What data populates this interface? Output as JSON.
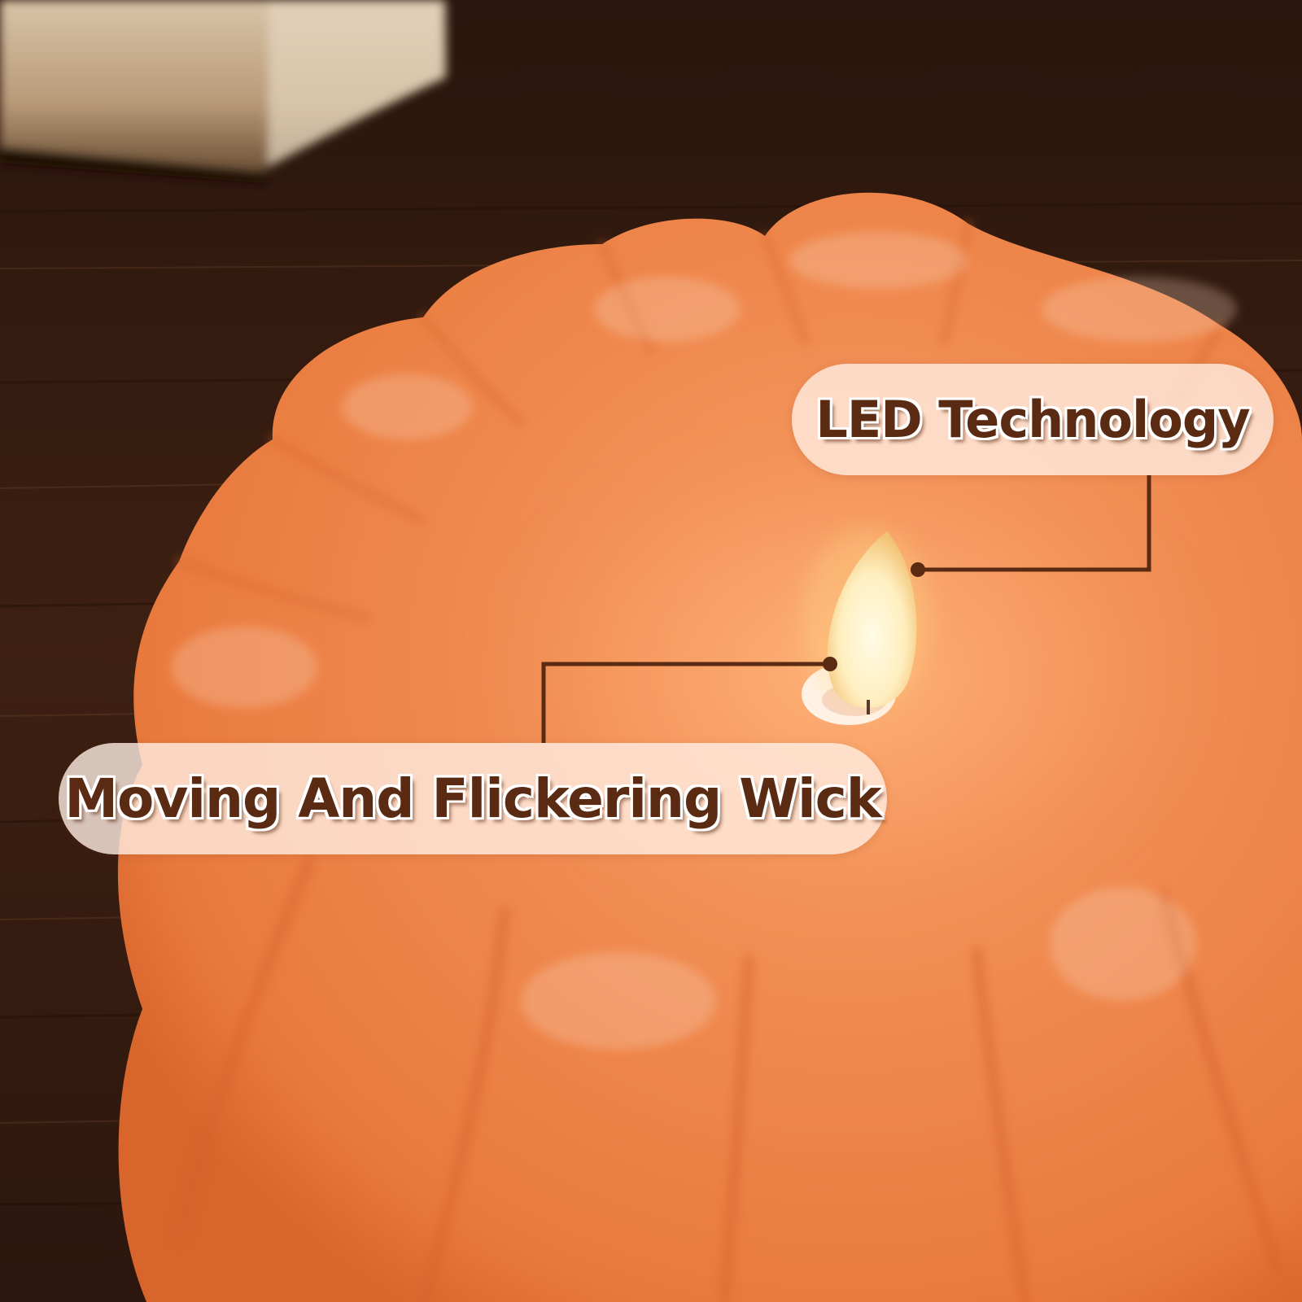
{
  "image": {
    "description_colors": {
      "wood": "#3a1f12",
      "pumpkin": "#f28a4e",
      "flame": "#fff6d0",
      "label_text": "#5a2a12"
    }
  },
  "callouts": {
    "led": {
      "label": "LED Technology"
    },
    "wick": {
      "label": "Moving And Flickering Wick"
    }
  }
}
